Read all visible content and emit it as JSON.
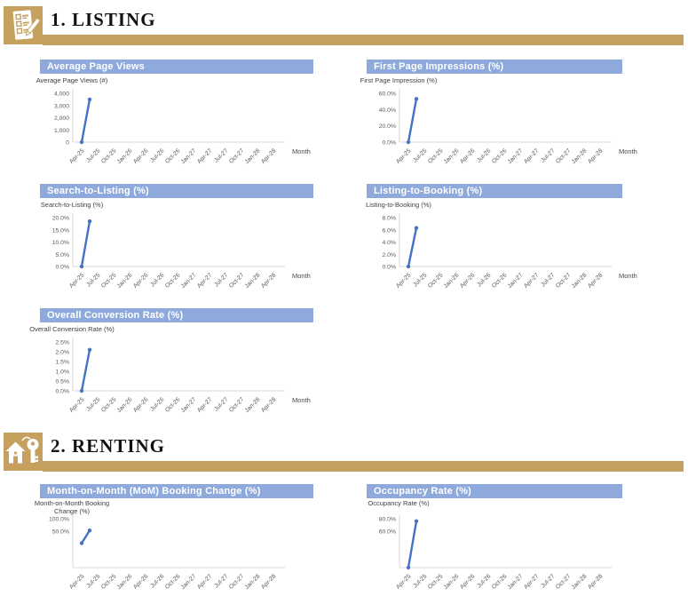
{
  "theme": {
    "section_accent_tan": "#C5A05E",
    "chart_title_bar_blue": "#8EA9DB",
    "chart_title_text": "#FFFFFF",
    "series_line_blue": "#4472C4",
    "axis_line_gray": "#D9D9D9",
    "tick_text_gray": "#595959"
  },
  "sections": [
    {
      "label": "1. LISTING",
      "icon": "checklist-pencil-icon"
    },
    {
      "label": "2. RENTING",
      "icon": "house-key-icon"
    }
  ],
  "x_categories": [
    "Apr-25",
    "Jul-25",
    "Oct-25",
    "Jan-26",
    "Apr-26",
    "Jul-26",
    "Oct-26",
    "Jan-27",
    "Apr-27",
    "Jul-27",
    "Oct-27",
    "Jan-28",
    "Apr-28"
  ],
  "chart_data": [
    {
      "type": "line",
      "title": "Average Page Views",
      "ylabel": "Average Page Views (#)",
      "xlabel": "Month",
      "y_ticks_visible": [
        "4,000",
        "3,000",
        "2,000",
        "1,000",
        "0"
      ],
      "y_top_tick_value": 4000,
      "y_tick_step_value": 1000,
      "series": [
        {
          "points": [
            {
              "xi": 0,
              "x": "Apr-25",
              "value": 0
            },
            {
              "xi": 0.5,
              "value": 3500
            }
          ]
        }
      ]
    },
    {
      "type": "line",
      "title": "First Page Impressions (%)",
      "ylabel": "First Page Impression (%)",
      "xlabel": "Month",
      "y_ticks_visible": [
        "60.0%",
        "40.0%",
        "20.0%",
        "0.0%"
      ],
      "y_top_tick_value": 60,
      "y_tick_step_value": 20,
      "series": [
        {
          "points": [
            {
              "xi": 0,
              "x": "Apr-25",
              "value": 0
            },
            {
              "xi": 0.5,
              "value": 53
            }
          ]
        }
      ]
    },
    {
      "type": "line",
      "title": "Search-to-Listing (%)",
      "ylabel": "Search-to-Listing (%)",
      "xlabel": "Month",
      "y_ticks_visible": [
        "20.0%",
        "15.0%",
        "10.0%",
        "5.0%",
        "0.0%"
      ],
      "y_top_tick_value": 20,
      "y_tick_step_value": 5,
      "series": [
        {
          "points": [
            {
              "xi": 0,
              "x": "Apr-25",
              "value": 0
            },
            {
              "xi": 0.5,
              "value": 18.5
            }
          ]
        }
      ]
    },
    {
      "type": "line",
      "title": "Listing-to-Booking (%)",
      "ylabel": "Listing-to-Booking (%)",
      "xlabel": "Month",
      "y_ticks_visible": [
        "8.0%",
        "6.0%",
        "4.0%",
        "2.0%",
        "0.0%"
      ],
      "y_top_tick_value": 8,
      "y_tick_step_value": 2,
      "series": [
        {
          "points": [
            {
              "xi": 0,
              "x": "Apr-25",
              "value": 0
            },
            {
              "xi": 0.5,
              "value": 6.3
            }
          ]
        }
      ]
    },
    {
      "type": "line",
      "title": "Overall Conversion Rate (%)",
      "ylabel": "Overall Conversion Rate (%)",
      "xlabel": "Month",
      "y_ticks_visible": [
        "2.5%",
        "2.0%",
        "1.5%",
        "1.0%",
        "0.5%",
        "0.0%"
      ],
      "y_top_tick_value": 2.5,
      "y_tick_step_value": 0.5,
      "series": [
        {
          "points": [
            {
              "xi": 0,
              "x": "Apr-25",
              "value": 0
            },
            {
              "xi": 0.5,
              "value": 2.1
            }
          ]
        }
      ]
    },
    {
      "type": "line",
      "title": "Month-on-Month (MoM) Booking Change (%)",
      "ylabel_lines": [
        "Month-on-Month Booking",
        "Change (%)"
      ],
      "y_ticks_visible": [
        "100.0%",
        "50.0%"
      ],
      "y_top_tick_value": 100,
      "y_tick_step_value": 50,
      "series": [
        {
          "points": [
            {
              "xi": 0,
              "x": "Apr-25",
              "value": 0
            },
            {
              "xi": 0.5,
              "value": 52
            }
          ]
        }
      ]
    },
    {
      "type": "line",
      "title": "Occupancy Rate (%)",
      "ylabel": "Occupancy Rate (%)",
      "y_ticks_visible": [
        "80.0%",
        "60.0%"
      ],
      "y_top_tick_value": 80,
      "y_tick_step_value": 20,
      "series": [
        {
          "points": [
            {
              "xi": 0,
              "x": "Apr-25",
              "value": 0
            },
            {
              "xi": 0.5,
              "value": 76
            }
          ]
        }
      ]
    }
  ]
}
